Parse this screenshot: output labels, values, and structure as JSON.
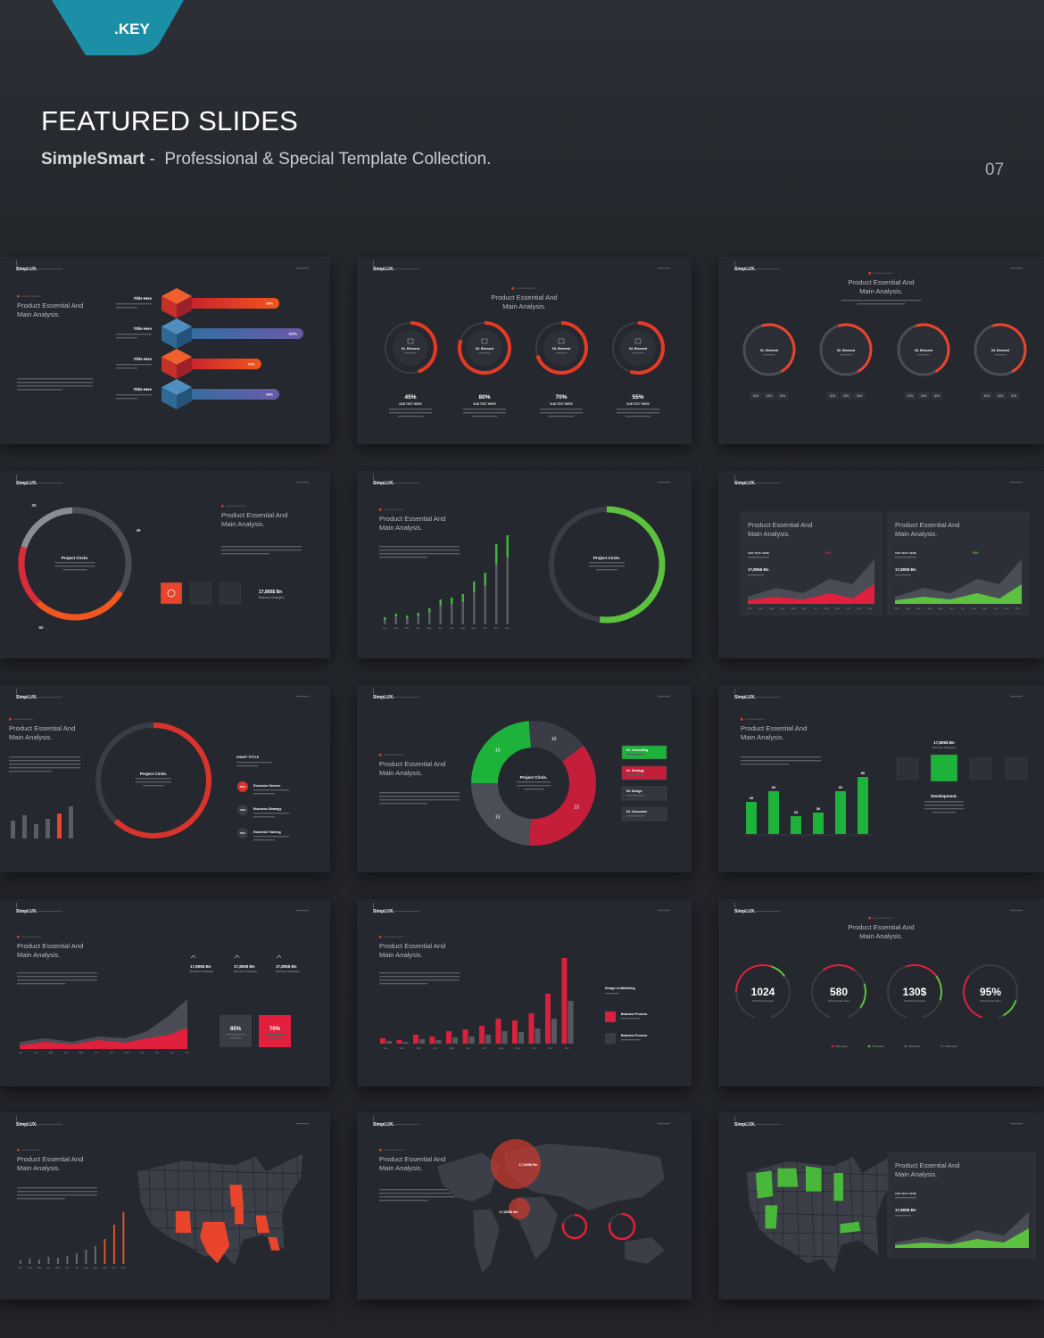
{
  "header": {
    "badge": ".KEY",
    "title": "FEATURED SLIDES",
    "brand": "SimpleSmart",
    "separator": "-",
    "tagline": "Professional & Special Template Collection.",
    "page": "07"
  },
  "slides": [
    {
      "type": "ribbons",
      "logo": "SimpLUX.",
      "heading": [
        "Product Essential And",
        "Main Analysis."
      ],
      "titles": [
        "Tittle Here",
        "Tittle Here",
        "Tittle Here",
        "Tittle Here"
      ],
      "values": [
        80,
        100,
        65,
        80
      ],
      "value_labels": [
        "80%",
        "100%",
        "65%",
        "80%"
      ]
    },
    {
      "type": "rings",
      "logo": "SimpLUX.",
      "heading": [
        "Product Essential And",
        "Main Analysis."
      ],
      "elements": [
        "01. Element",
        "02. Element",
        "03. Element",
        "04. Element"
      ],
      "values": [
        45,
        80,
        70,
        55
      ],
      "value_labels": [
        "45%",
        "80%",
        "70%",
        "55%"
      ],
      "sub": "SUB TEXT HERE"
    },
    {
      "type": "rings2",
      "logo": "SimpLUX.",
      "heading": [
        "Product Essential And",
        "Main Analysis."
      ],
      "elements": [
        "01. Element",
        "02. Element",
        "03. Element",
        "04. Element"
      ],
      "pills": [
        "50%",
        "25%",
        "30%"
      ]
    },
    {
      "type": "circle",
      "logo": "SimpLUX.",
      "heading": [
        "Product Essential And",
        "Main Analysis."
      ],
      "values": [
        25,
        45,
        60
      ],
      "center": "Project Circle.",
      "stat": "17,805$ Bn",
      "stat_sub": "Business Strategies"
    },
    {
      "type": "barring",
      "logo": "SimpLUX.",
      "heading": [
        "Product Essential And",
        "Main Analysis."
      ],
      "months": [
        "Jan",
        "Feb",
        "Mar",
        "Apr",
        "May",
        "Jun",
        "Jul",
        "Aug",
        "Sep",
        "Oct",
        "Nov",
        "Dec"
      ],
      "center": "Project Circle."
    },
    {
      "type": "cards",
      "logo": "SimpLUX.",
      "cards": [
        {
          "heading": [
            "Product Essential And",
            "Main Analysis."
          ],
          "sub": "SUB TEXT HERE",
          "stat": "17,805$ Bn",
          "badge": "65%"
        },
        {
          "heading": [
            "Product Essential And",
            "Main Analysis."
          ],
          "sub": "SUB TEXT HERE",
          "stat": "17,805$ Bn",
          "badge": "90%"
        }
      ],
      "months": [
        "Jan",
        "Feb",
        "Mar",
        "Apr",
        "May",
        "Jun",
        "Jul",
        "Aug",
        "Sep",
        "Oct",
        "Nov",
        "Dec"
      ]
    },
    {
      "type": "ringbars",
      "logo": "SimpLUX.",
      "heading": [
        "Product Essential And",
        "Main Analysis."
      ],
      "center": "Project Circle.",
      "chart_title": "CHART TITTLE",
      "items": [
        "Exclusive Service",
        "Business Strategy",
        "Essential Training"
      ],
      "item_labels": [
        "65%",
        "45%",
        "50%"
      ]
    },
    {
      "type": "donut",
      "logo": "SimpLUX.",
      "heading": [
        "Product Essential And",
        "Main Analysis."
      ],
      "values": [
        15,
        10,
        23,
        15
      ],
      "colors": [
        "#1db33a",
        "#3a3d45",
        "#c41e3a",
        "#4a4e57"
      ],
      "legend": [
        "02. Consulting",
        "01. Strategy",
        "03. Design",
        "04. Consumer"
      ],
      "center": "Project Circle."
    },
    {
      "type": "greenbars",
      "logo": "SimpLUX.",
      "heading": [
        "Product Essential And",
        "Main Analysis."
      ],
      "values": [
        45,
        60,
        25,
        30,
        60,
        80
      ],
      "stat": "17,805$ Bn",
      "stat_sub": "Business Strategies",
      "caption": "Development."
    },
    {
      "type": "area",
      "logo": "SimpLUX.",
      "heading": [
        "Product Essential And",
        "Main Analysis."
      ],
      "stats": [
        "17,805$ Bn",
        "17,805$ Bn",
        "17,805$ Bn"
      ],
      "stat_sub": "Business Strategies",
      "boxes": [
        "85%",
        "70%"
      ],
      "months": [
        "Jan",
        "Feb",
        "Mar",
        "Apr",
        "May",
        "Jun",
        "Jul",
        "Aug",
        "Sep",
        "Oct",
        "Nov",
        "Dec"
      ]
    },
    {
      "type": "pairbars",
      "logo": "SimpLUX.",
      "heading": [
        "Product Essential And",
        "Main Analysis."
      ],
      "side_title": "Design or Marketing",
      "items": [
        "Business Process",
        "Business Process"
      ],
      "months": [
        "Jan",
        "Feb",
        "Mar",
        "Apr",
        "May",
        "Jun",
        "Jul",
        "Aug",
        "Sep",
        "Oct",
        "Nov",
        "Dec"
      ]
    },
    {
      "type": "stats",
      "logo": "SimpLUX.",
      "heading": [
        "Product Essential And",
        "Main Analysis."
      ],
      "stats": [
        "1024",
        "580",
        "130$",
        "95%"
      ],
      "stat_sub": "Total Names Here",
      "legend": [
        "Tittle Here",
        "Tittle Here",
        "Tittle Here",
        "Tittle Here"
      ]
    },
    {
      "type": "usred",
      "logo": "SimpLUX.",
      "heading": [
        "Product Essential And",
        "Main Analysis."
      ],
      "months": [
        "Jan",
        "Feb",
        "Mar",
        "Apr",
        "May",
        "Jun",
        "Jul",
        "Aug",
        "Sep",
        "Oct",
        "Nov",
        "Dec"
      ]
    },
    {
      "type": "world",
      "logo": "SimpLUX.",
      "heading": [
        "Product Essential And",
        "Main Analysis."
      ],
      "bubbles": [
        "17,805$ Bn",
        "17,805$ Bn"
      ]
    },
    {
      "type": "usgreen",
      "logo": "SimpLUX.",
      "heading": [
        "Product Essential And",
        "Main Analysis."
      ],
      "sub": "SUB TEXT HERE",
      "stat": "17,805$ Bn"
    }
  ]
}
